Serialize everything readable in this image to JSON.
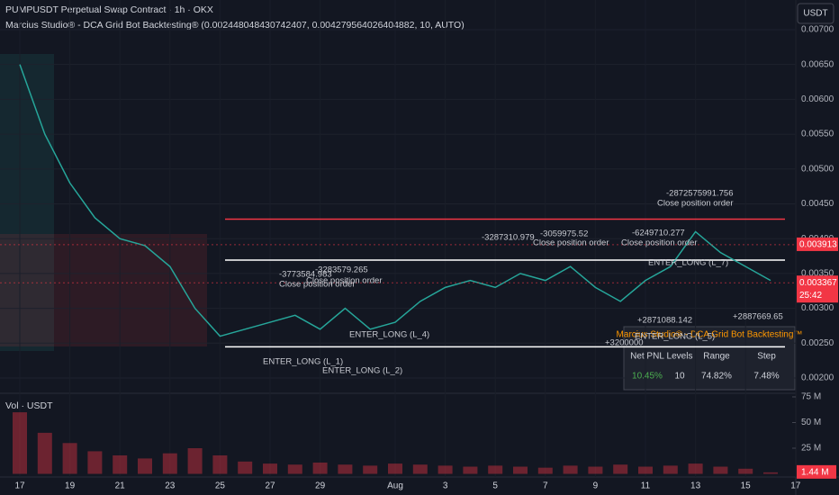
{
  "header": {
    "symbol_line": "PUMPUSDT Perpetual Swap Contract · 1h · OKX",
    "indicator_line": "Marcius Studio® - DCA Grid Bot Backtesting® (0.002448048430742407, 0.004279564026404882, 10, AUTO)",
    "currency_button": "USDT",
    "volume_label": "Vol · USDT",
    "countdown": "25:42"
  },
  "chart_data": {
    "type": "line",
    "color": "#26a69a",
    "x": [
      "Jul 17",
      "Jul 18",
      "Jul 19",
      "Jul 20",
      "Jul 21",
      "Jul 22",
      "Jul 23",
      "Jul 24",
      "Jul 25",
      "Jul 26",
      "Jul 27",
      "Jul 28",
      "Jul 29",
      "Jul 30",
      "Jul 31",
      "Aug 1",
      "Aug 2",
      "Aug 3",
      "Aug 4",
      "Aug 5",
      "Aug 6",
      "Aug 7",
      "Aug 8",
      "Aug 9",
      "Aug 10",
      "Aug 11",
      "Aug 12",
      "Aug 13",
      "Aug 14",
      "Aug 15",
      "Aug 16"
    ],
    "values": [
      0.0065,
      0.0055,
      0.0048,
      0.0043,
      0.004,
      0.0039,
      0.0036,
      0.003,
      0.0026,
      0.0027,
      0.0028,
      0.0029,
      0.0027,
      0.003,
      0.0027,
      0.0028,
      0.0031,
      0.0033,
      0.0034,
      0.0033,
      0.0035,
      0.0034,
      0.0036,
      0.0033,
      0.0031,
      0.0034,
      0.0036,
      0.0041,
      0.0038,
      0.0036,
      0.0034
    ],
    "ylim": [
      0.001845,
      0.007426
    ],
    "yticks": [
      {
        "value": 0.002,
        "label": "0.00200"
      },
      {
        "value": 0.0025,
        "label": "0.00250"
      },
      {
        "value": 0.003,
        "label": "0.00300"
      },
      {
        "value": 0.0035,
        "label": "0.00350"
      },
      {
        "value": 0.004,
        "label": "0.00400"
      },
      {
        "value": 0.0045,
        "label": "0.00450"
      },
      {
        "value": 0.005,
        "label": "0.00500"
      },
      {
        "value": 0.0055,
        "label": "0.00550"
      },
      {
        "value": 0.006,
        "label": "0.00600"
      },
      {
        "value": 0.0065,
        "label": "0.00650"
      },
      {
        "value": 0.007,
        "label": "0.00700"
      }
    ],
    "xticks": [
      {
        "value": "Jul 17",
        "label": "17"
      },
      {
        "value": "Jul 19",
        "label": "19"
      },
      {
        "value": "Jul 21",
        "label": "21"
      },
      {
        "value": "Jul 23",
        "label": "23"
      },
      {
        "value": "Jul 25",
        "label": "25"
      },
      {
        "value": "Jul 27",
        "label": "27"
      },
      {
        "value": "Jul 29",
        "label": "29"
      },
      {
        "value": "Aug 1",
        "label": "Aug"
      },
      {
        "value": "Aug 3",
        "label": "3"
      },
      {
        "value": "Aug 5",
        "label": "5"
      },
      {
        "value": "Aug 7",
        "label": "7"
      },
      {
        "value": "Aug 9",
        "label": "9"
      },
      {
        "value": "Aug 11",
        "label": "11"
      },
      {
        "value": "Aug 13",
        "label": "13"
      },
      {
        "value": "Aug 15",
        "label": "15"
      },
      {
        "value": "Aug 17",
        "label": "17"
      }
    ],
    "price_labels": [
      {
        "value": 0.003913,
        "color": "#f23645"
      },
      {
        "value": 0.003367,
        "color": "#f23645"
      }
    ],
    "grid_levels": [
      {
        "value": 0.00428,
        "color": "#f23645"
      },
      {
        "value": 0.003693,
        "color": "#ffffff"
      },
      {
        "value": 0.002448,
        "color": "#ffffff"
      }
    ],
    "volume": {
      "color": "#f2364566",
      "values": [
        60000000,
        40000000,
        30000000,
        22000000,
        18000000,
        15000000,
        20000000,
        25000000,
        18000000,
        12000000,
        10000000,
        9000000,
        11000000,
        9000000,
        8000000,
        10000000,
        9000000,
        8000000,
        7000000,
        8000000,
        7000000,
        6000000,
        8000000,
        7000000,
        9000000,
        7000000,
        8000000,
        10000000,
        7000000,
        5000000,
        1440000
      ],
      "ylim": [
        0,
        82000000
      ],
      "yticks": [
        {
          "value": 25000000,
          "label": "25 M"
        },
        {
          "value": 50000000,
          "label": "50 M"
        },
        {
          "value": 75000000,
          "label": "75 M"
        }
      ],
      "last_label": {
        "value": 1440000,
        "label": "1.44 M"
      }
    }
  },
  "annotations": [
    "-3773584.983",
    "Close position order",
    "-3283579.265",
    "Close position order",
    "-3287310.979",
    "-3059975.52",
    "Close position order",
    "-6249710.277",
    "Close position order",
    "-2872575991.756",
    "Close position order",
    "ENTER_LONG (L_1)",
    "ENTER_LONG (L_2)",
    "ENTER_LONG (L_4)",
    "ENTER_LONG (L_5)",
    "ENTER_LONG (L_7)",
    "+2871088.142",
    "+3200000",
    "+2887669.65"
  ],
  "table": {
    "title": "Marcius Studio® - DCA Grid Bot Backtesting™",
    "headers": [
      "Net PNL",
      "Levels",
      "Range",
      "Step"
    ],
    "row": [
      "10.45%",
      "10",
      "74.82%",
      "7.48%"
    ]
  }
}
